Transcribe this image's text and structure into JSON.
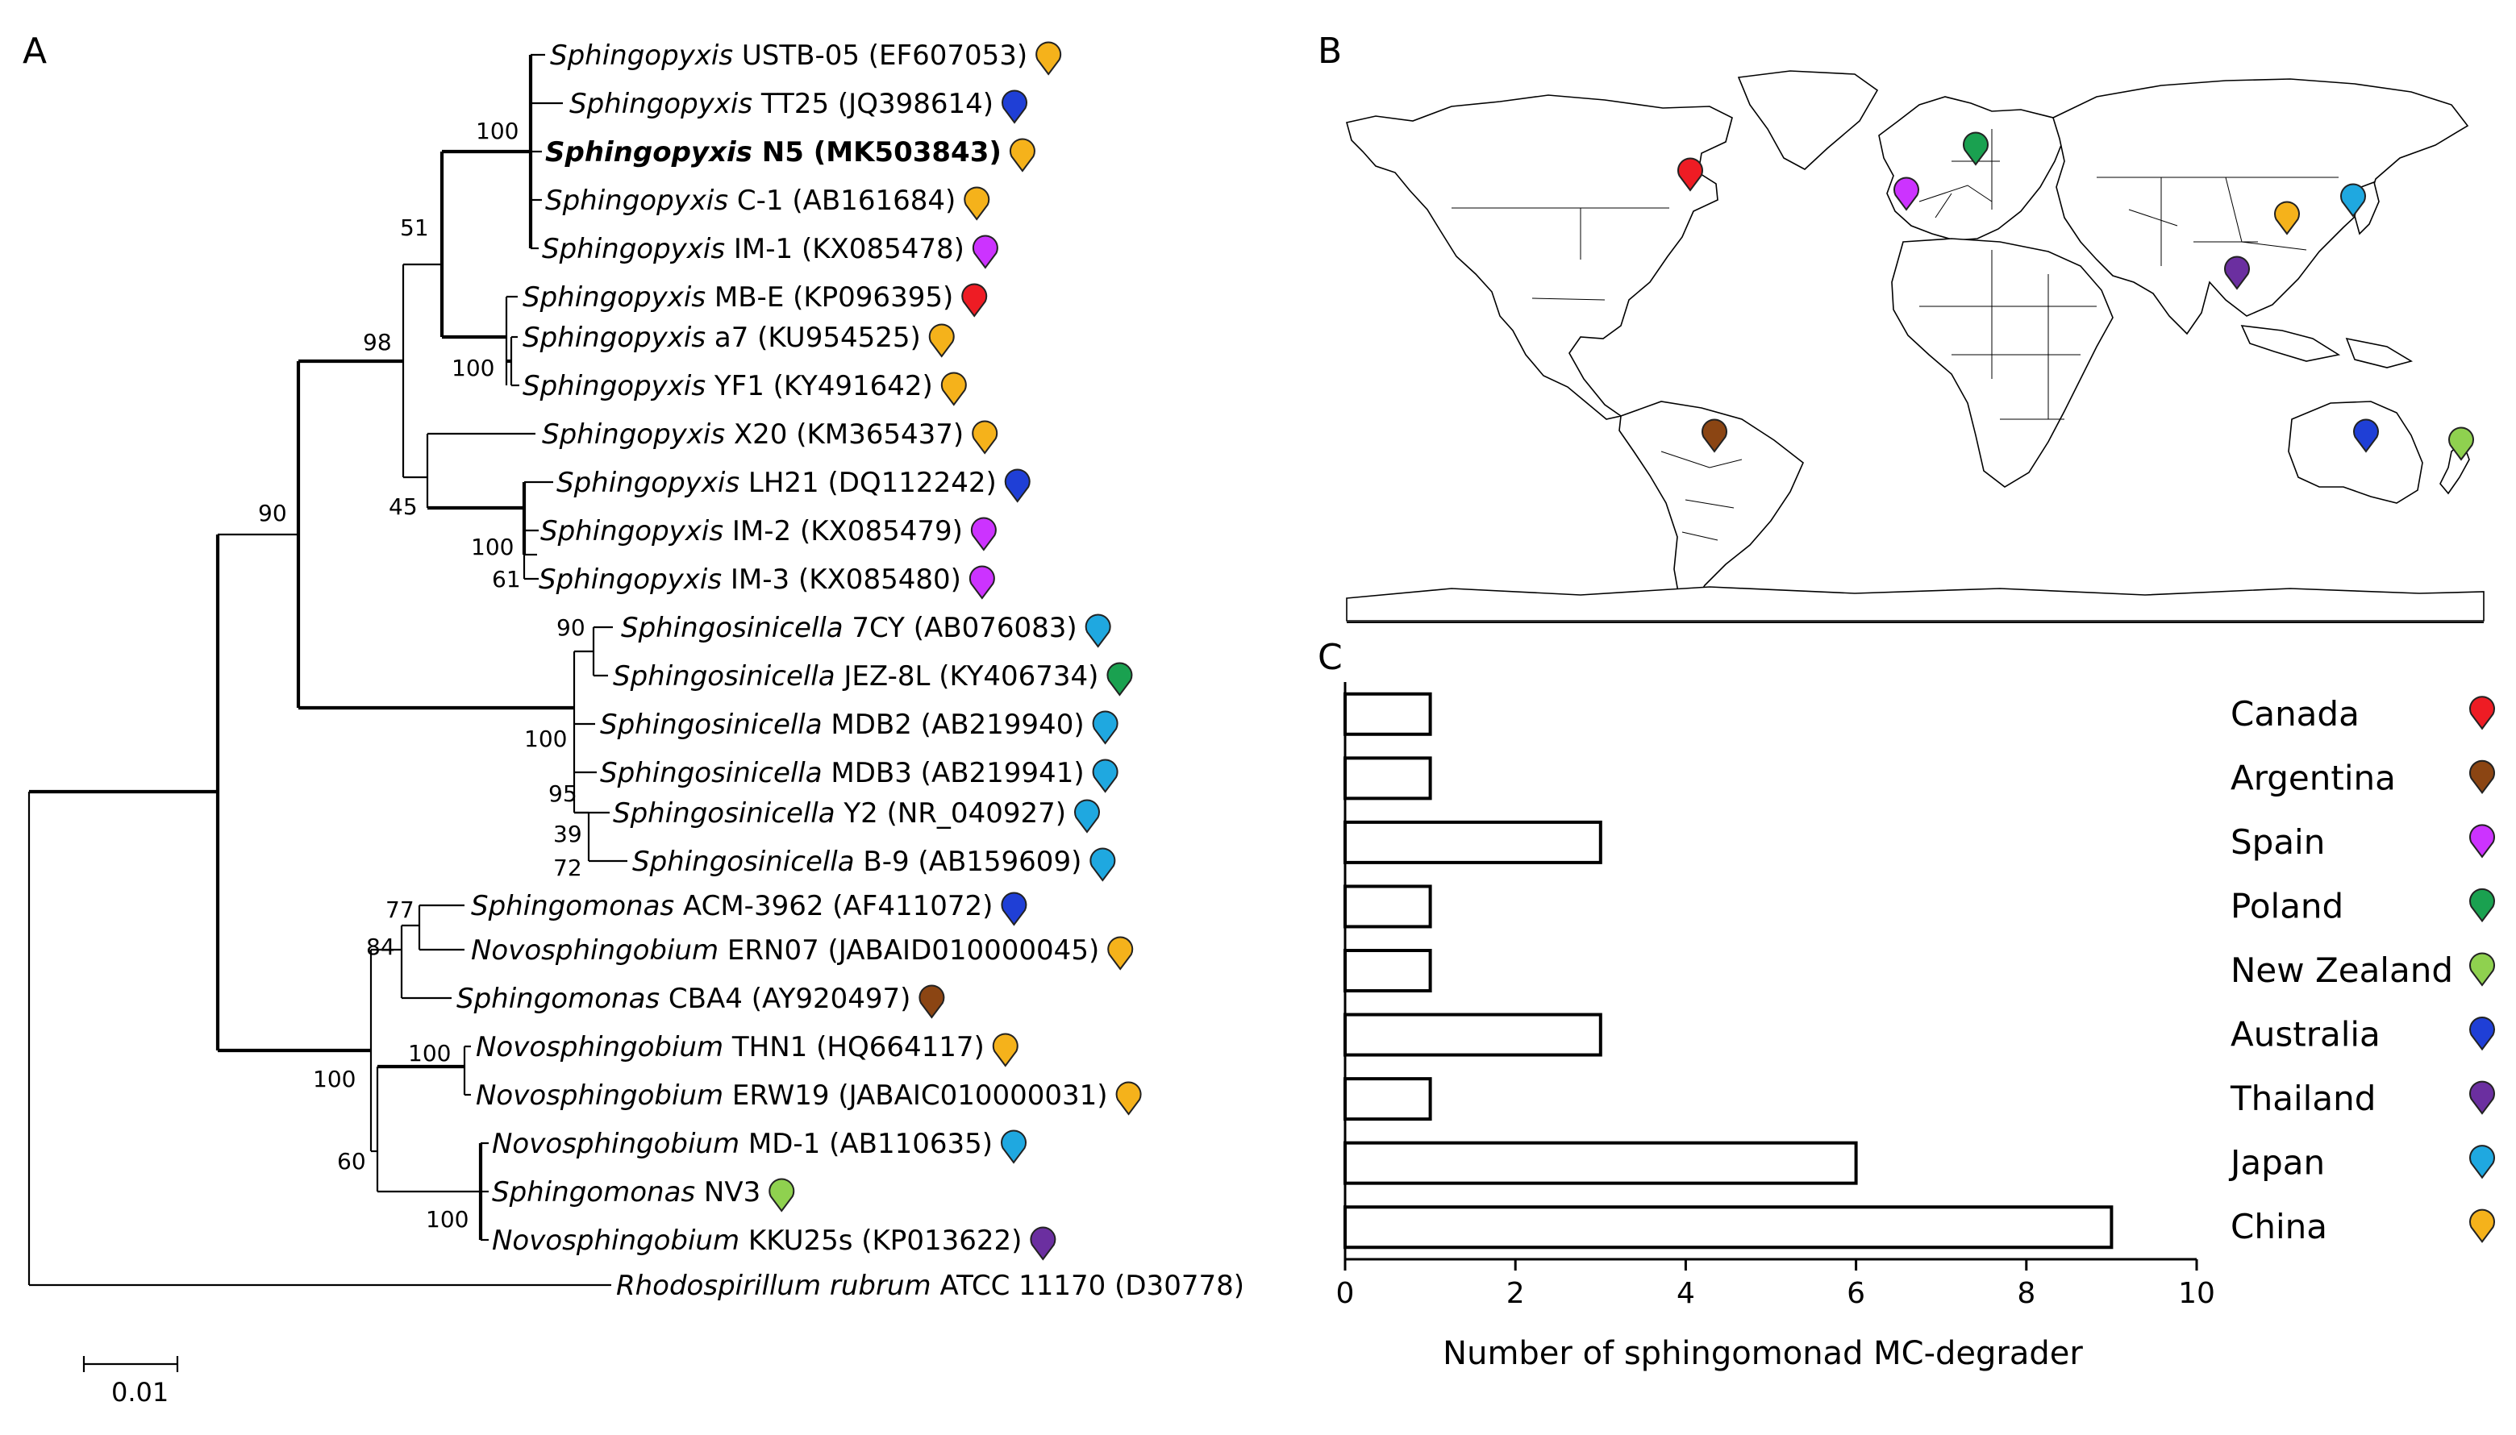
{
  "panels": {
    "a": "A",
    "b": "B",
    "c": "C"
  },
  "colors": {
    "Canada": "#ee1c24",
    "Argentina": "#8b4513",
    "Spain": "#cc33ff",
    "Poland": "#1aa150",
    "New Zealand": "#8fd14f",
    "Australia": "#1f3fd6",
    "Thailand": "#6b2fa0",
    "Japan": "#1fa8e0",
    "China": "#f5b21b"
  },
  "tree": {
    "leaves": [
      {
        "genus": "Sphingopyxis",
        "strain": "USTB-05 (EF607053)",
        "country": "China",
        "bold": false
      },
      {
        "genus": "Sphingopyxis",
        "strain": "TT25 (JQ398614)",
        "country": "Australia",
        "bold": false
      },
      {
        "genus": "Sphingopyxis",
        "strain": "N5 (MK503843)",
        "country": "China",
        "bold": true
      },
      {
        "genus": "Sphingopyxis",
        "strain": "C-1 (AB161684)",
        "country": "China",
        "bold": false
      },
      {
        "genus": "Sphingopyxis",
        "strain": "IM-1 (KX085478)",
        "country": "Spain",
        "bold": false
      },
      {
        "genus": "Sphingopyxis",
        "strain": "MB-E (KP096395)",
        "country": "Canada",
        "bold": false
      },
      {
        "genus": "Sphingopyxis",
        "strain": "a7 (KU954525)",
        "country": "China",
        "bold": false
      },
      {
        "genus": "Sphingopyxis",
        "strain": "YF1 (KY491642)",
        "country": "China",
        "bold": false
      },
      {
        "genus": "Sphingopyxis",
        "strain": "X20 (KM365437)",
        "country": "China",
        "bold": false
      },
      {
        "genus": "Sphingopyxis",
        "strain": "LH21 (DQ112242)",
        "country": "Australia",
        "bold": false
      },
      {
        "genus": "Sphingopyxis",
        "strain": "IM-2 (KX085479)",
        "country": "Spain",
        "bold": false
      },
      {
        "genus": "Sphingopyxis",
        "strain": "IM-3 (KX085480)",
        "country": "Spain",
        "bold": false
      },
      {
        "genus": "Sphingosinicella",
        "strain": "7CY (AB076083)",
        "country": "Japan",
        "bold": false
      },
      {
        "genus": "Sphingosinicella",
        "strain": "JEZ-8L (KY406734)",
        "country": "Poland",
        "bold": false
      },
      {
        "genus": "Sphingosinicella",
        "strain": "MDB2 (AB219940)",
        "country": "Japan",
        "bold": false
      },
      {
        "genus": "Sphingosinicella",
        "strain": "MDB3 (AB219941)",
        "country": "Japan",
        "bold": false
      },
      {
        "genus": "Sphingosinicella",
        "strain": "Y2 (NR_040927)",
        "country": "Japan",
        "bold": false
      },
      {
        "genus": "Sphingosinicella",
        "strain": "B-9 (AB159609)",
        "country": "Japan",
        "bold": false
      },
      {
        "genus": "Sphingomonas",
        "strain": "ACM-3962 (AF411072)",
        "country": "Australia",
        "bold": false
      },
      {
        "genus": "Novosphingobium",
        "strain": "ERN07 (JABAID010000045)",
        "country": "China",
        "bold": false
      },
      {
        "genus": "Sphingomonas",
        "strain": "CBA4 (AY920497)",
        "country": "Argentina",
        "bold": false
      },
      {
        "genus": "Novosphingobium",
        "strain": "THN1 (HQ664117)",
        "country": "China",
        "bold": false
      },
      {
        "genus": "Novosphingobium",
        "strain": "ERW19 (JABAIC010000031)",
        "country": "China",
        "bold": false
      },
      {
        "genus": "Novosphingobium",
        "strain": "MD-1 (AB110635)",
        "country": "Japan",
        "bold": false
      },
      {
        "genus": "Sphingomonas",
        "strain": "NV3",
        "country": "New Zealand",
        "bold": false
      },
      {
        "genus": "Novosphingobium",
        "strain": "KKU25s (KP013622)",
        "country": "Thailand",
        "bold": false
      },
      {
        "genus": "Rhodospirillum rubrum",
        "strain": "ATCC 11170 (D30778)",
        "country": null,
        "bold": false
      }
    ],
    "bootstrap": [
      "100",
      "51",
      "98",
      "100",
      "90",
      "45",
      "100",
      "61",
      "90",
      "100",
      "95",
      "39",
      "72",
      "77",
      "84",
      "100",
      "100",
      "60",
      "100"
    ],
    "scale_bar": "0.01"
  },
  "map": {
    "markers": [
      {
        "country": "Canada"
      },
      {
        "country": "Spain"
      },
      {
        "country": "Poland"
      },
      {
        "country": "China"
      },
      {
        "country": "Japan"
      },
      {
        "country": "Thailand"
      },
      {
        "country": "Argentina"
      },
      {
        "country": "Australia"
      },
      {
        "country": "New Zealand"
      }
    ]
  },
  "chart_data": {
    "type": "bar",
    "orientation": "horizontal",
    "categories": [
      "Canada",
      "Argentina",
      "Spain",
      "Poland",
      "New Zealand",
      "Australia",
      "Thailand",
      "Japan",
      "China"
    ],
    "values": [
      1,
      1,
      3,
      1,
      1,
      3,
      1,
      6,
      9
    ],
    "xlabel": "Number of sphingomonad MC-degrader",
    "xlim": [
      0,
      10
    ],
    "xticks": [
      "0",
      "2",
      "4",
      "6",
      "8",
      "10"
    ],
    "legend": [
      "Canada",
      "Argentina",
      "Spain",
      "Poland",
      "New Zealand",
      "Australia",
      "Thailand",
      "Japan",
      "China"
    ]
  }
}
